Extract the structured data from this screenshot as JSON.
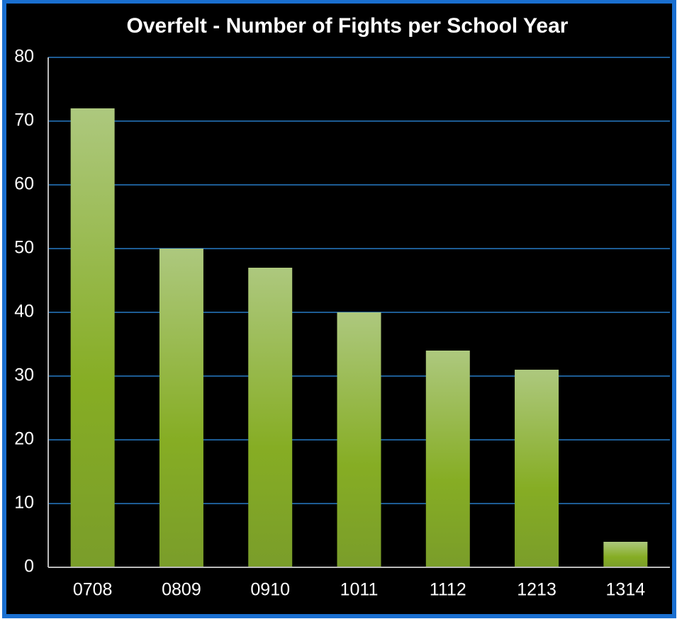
{
  "chart_data": {
    "type": "bar",
    "title": "Overfelt - Number of Fights per School Year",
    "categories": [
      "0708",
      "0809",
      "0910",
      "1011",
      "1112",
      "1213",
      "1314"
    ],
    "values": [
      72,
      50,
      47,
      40,
      34,
      31,
      4
    ],
    "color": "#86ad24",
    "ylim": [
      0,
      80
    ],
    "yticks": [
      0,
      10,
      20,
      30,
      40,
      50,
      60,
      70,
      80
    ],
    "grid": true
  }
}
